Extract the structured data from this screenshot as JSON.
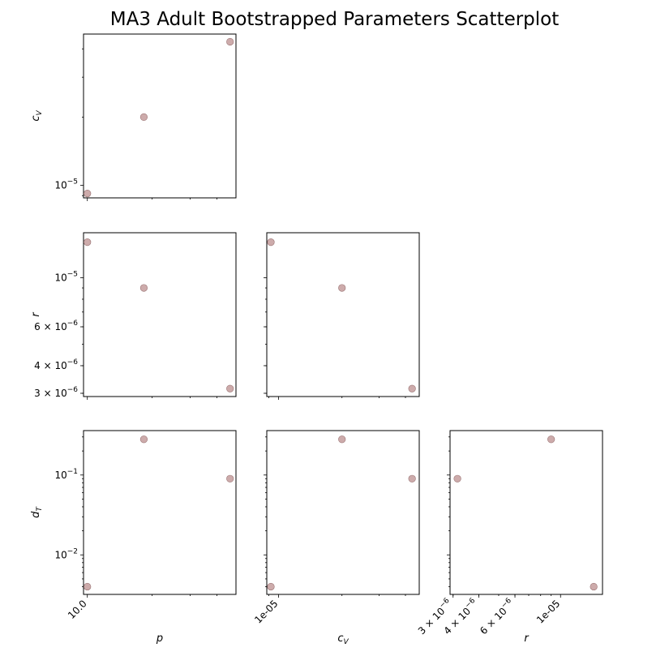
{
  "title": "MA3 Adult Bootstrapped Parameters Scatterplot",
  "chart_data": {
    "type": "scatter",
    "title": "MA3 Adult Bootstrapped Parameters Scatterplot",
    "point_color": "#bc8f8f",
    "variables": [
      {
        "key": "p",
        "label": "p",
        "sub": "",
        "scale": "log"
      },
      {
        "key": "cV",
        "label": "c",
        "sub": "V",
        "scale": "log"
      },
      {
        "key": "r",
        "label": "r",
        "sub": "",
        "scale": "log"
      },
      {
        "key": "dT",
        "label": "d",
        "sub": "T",
        "scale": "log"
      }
    ],
    "points": {
      "p": [
        10.0,
        18.3,
        46.0
      ],
      "cV": [
        9.2e-06,
        2e-05,
        4.3e-05
      ],
      "r": [
        1.45e-05,
        9e-06,
        3.15e-06
      ],
      "dT": [
        0.004,
        0.28,
        0.09
      ]
    },
    "ranges": {
      "p": [
        9.6,
        49.0
      ],
      "cV": [
        8.8e-06,
        4.65e-05
      ],
      "r": [
        2.9e-06,
        1.6e-05
      ],
      "dT": [
        0.0032,
        0.36
      ]
    },
    "ticks": {
      "p": [
        {
          "v": 10.0,
          "t": "10.0"
        }
      ],
      "cV": [
        {
          "v": 1e-05,
          "t": "10",
          "exp": "−5"
        }
      ],
      "cV_x": [
        {
          "v": 1e-05,
          "t": "1e-05"
        }
      ],
      "r": [
        {
          "v": 1e-05,
          "t": "10",
          "exp": "−5"
        },
        {
          "v": 6e-06,
          "t": "6 × 10",
          "exp": "−6"
        },
        {
          "v": 4e-06,
          "t": "4 × 10",
          "exp": "−6"
        },
        {
          "v": 3e-06,
          "t": "3 × 10",
          "exp": "−6"
        }
      ],
      "r_x": [
        {
          "v": 3e-06,
          "t": "3 × 10",
          "exp": "−6"
        },
        {
          "v": 4e-06,
          "t": "4 × 10",
          "exp": "−6"
        },
        {
          "v": 6e-06,
          "t": "6 × 10",
          "exp": "−6"
        },
        {
          "v": 1e-05,
          "t": "1e-05"
        }
      ],
      "dT": [
        {
          "v": 0.1,
          "t": "10",
          "exp": "−1"
        },
        {
          "v": 0.01,
          "t": "10",
          "exp": "−2"
        }
      ]
    },
    "panels": [
      {
        "row": 0,
        "col": 0,
        "x": "p",
        "y": "cV"
      },
      {
        "row": 1,
        "col": 0,
        "x": "p",
        "y": "r"
      },
      {
        "row": 1,
        "col": 1,
        "x": "cV",
        "y": "r"
      },
      {
        "row": 2,
        "col": 0,
        "x": "p",
        "y": "dT"
      },
      {
        "row": 2,
        "col": 1,
        "x": "cV",
        "y": "dT"
      },
      {
        "row": 2,
        "col": 2,
        "x": "r",
        "y": "dT"
      }
    ],
    "grid": false,
    "legend": "none"
  }
}
